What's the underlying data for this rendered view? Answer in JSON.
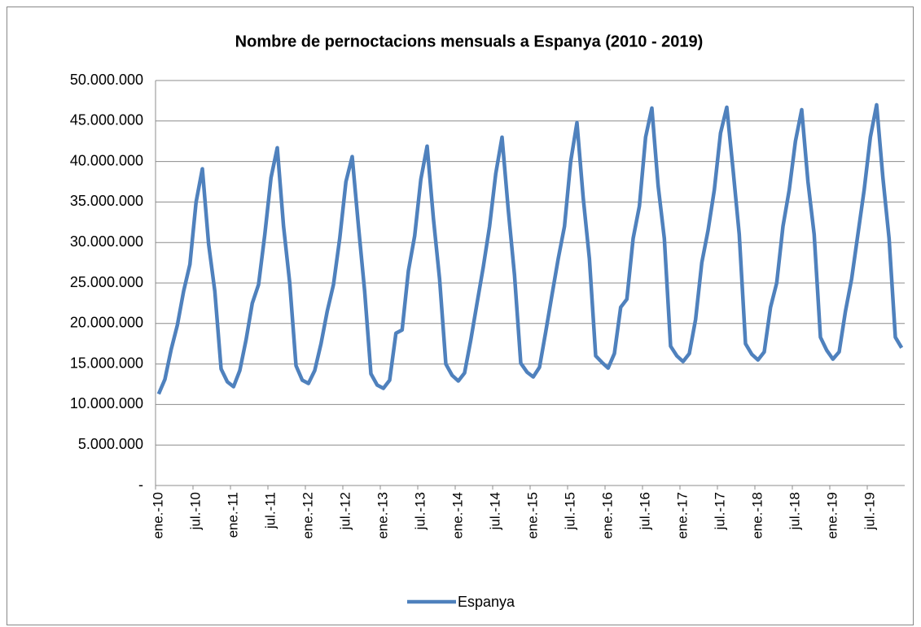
{
  "chart_data": {
    "type": "line",
    "title": "Nombre de pernoctacions mensuals a Espanya (2010 - 2019)",
    "categories": [
      "ene.-10",
      null,
      null,
      null,
      null,
      null,
      "jul.-10",
      null,
      null,
      null,
      null,
      null,
      "ene.-11",
      null,
      null,
      null,
      null,
      null,
      "jul.-11",
      null,
      null,
      null,
      null,
      null,
      "ene.-12",
      null,
      null,
      null,
      null,
      null,
      "jul.-12",
      null,
      null,
      null,
      null,
      null,
      "ene.-13",
      null,
      null,
      null,
      null,
      null,
      "jul.-13",
      null,
      null,
      null,
      null,
      null,
      "ene.-14",
      null,
      null,
      null,
      null,
      null,
      "jul.-14",
      null,
      null,
      null,
      null,
      null,
      "ene.-15",
      null,
      null,
      null,
      null,
      null,
      "jul.-15",
      null,
      null,
      null,
      null,
      null,
      "ene.-16",
      null,
      null,
      null,
      null,
      null,
      "jul.-16",
      null,
      null,
      null,
      null,
      null,
      "ene.-17",
      null,
      null,
      null,
      null,
      null,
      "jul.-17",
      null,
      null,
      null,
      null,
      null,
      "ene.-18",
      null,
      null,
      null,
      null,
      null,
      "jul.-18",
      null,
      null,
      null,
      null,
      null,
      "ene.-19",
      null,
      null,
      null,
      null,
      null,
      "jul.-19",
      null,
      null,
      null,
      null,
      null
    ],
    "series": [
      {
        "name": "Espanya",
        "color": "#4f81bd",
        "values": [
          11300000,
          13100000,
          16800000,
          19800000,
          24000000,
          27300000,
          35000000,
          39100000,
          29800000,
          24000000,
          14400000,
          12800000,
          12200000,
          14200000,
          18000000,
          22500000,
          24800000,
          31000000,
          38000000,
          41700000,
          32000000,
          25000000,
          14800000,
          13000000,
          12600000,
          14200000,
          17500000,
          21500000,
          24800000,
          30500000,
          37500000,
          40600000,
          32000000,
          24000000,
          13800000,
          12400000,
          12000000,
          13000000,
          18800000,
          19200000,
          26500000,
          30800000,
          37800000,
          41900000,
          33000000,
          25500000,
          15000000,
          13600000,
          12900000,
          13900000,
          18000000,
          22500000,
          27000000,
          32000000,
          38500000,
          43000000,
          34000000,
          26000000,
          15100000,
          14000000,
          13400000,
          14600000,
          19000000,
          23500000,
          28000000,
          32000000,
          40000000,
          44800000,
          35500000,
          28000000,
          16000000,
          15200000,
          14500000,
          16300000,
          22000000,
          23000000,
          30500000,
          34500000,
          43000000,
          46600000,
          37000000,
          30500000,
          17200000,
          16000000,
          15300000,
          16300000,
          20500000,
          27500000,
          31500000,
          36500000,
          43500000,
          46700000,
          39000000,
          31000000,
          17500000,
          16200000,
          15500000,
          16500000,
          22000000,
          25000000,
          32000000,
          36500000,
          42500000,
          46400000,
          37500000,
          31000000,
          18300000,
          16700000,
          15600000,
          16500000,
          21500000,
          25500000,
          31000000,
          36500000,
          43000000,
          47000000,
          38000000,
          30500000,
          18300000,
          17000000
        ]
      }
    ],
    "ylim": [
      0,
      50000000
    ],
    "yticks": [
      {
        "value": 0,
        "label": "-"
      },
      {
        "value": 5000000,
        "label": "5.000.000"
      },
      {
        "value": 10000000,
        "label": "10.000.000"
      },
      {
        "value": 15000000,
        "label": "15.000.000"
      },
      {
        "value": 20000000,
        "label": "20.000.000"
      },
      {
        "value": 25000000,
        "label": "25.000.000"
      },
      {
        "value": 30000000,
        "label": "30.000.000"
      },
      {
        "value": 35000000,
        "label": "35.000.000"
      },
      {
        "value": 40000000,
        "label": "40.000.000"
      },
      {
        "value": 45000000,
        "label": "45.000.000"
      },
      {
        "value": 50000000,
        "label": "50.000.000"
      }
    ],
    "grid": true,
    "legend": "bottom"
  }
}
